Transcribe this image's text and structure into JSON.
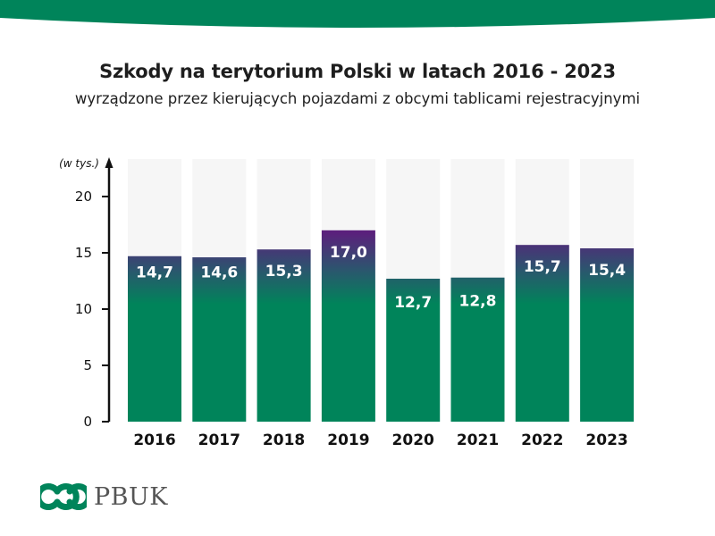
{
  "title": "Szkody na terytorium Polski w latach 2016 - 2023",
  "subtitle": "wyrządzone przez kierujących pojazdami z obcymi tablicami rejestracyjnymi",
  "brand": {
    "name": "PBUK",
    "color": "#00845a"
  },
  "colors": {
    "bar_bottom": "#00845a",
    "bar_top": "#5b1f7c",
    "background_column": "#f6f6f6",
    "banner": "#00845a"
  },
  "chart_data": {
    "type": "bar",
    "title": "Szkody na terytorium Polski w latach 2016 - 2023",
    "subtitle": "wyrządzone przez kierujących pojazdami z obcymi tablicami rejestracyjnymi",
    "unit_label": "(w tys.)",
    "categories": [
      "2016",
      "2017",
      "2018",
      "2019",
      "2020",
      "2021",
      "2022",
      "2023"
    ],
    "values": [
      14.7,
      14.6,
      15.3,
      17.0,
      12.7,
      12.8,
      15.7,
      15.4
    ],
    "value_labels": [
      "14,7",
      "14,6",
      "15,3",
      "17,0",
      "12,7",
      "12,8",
      "15,7",
      "15,4"
    ],
    "ylim": [
      0,
      22
    ],
    "yticks": [
      0,
      5,
      10,
      15,
      20
    ],
    "grid": false,
    "legend": "none"
  }
}
